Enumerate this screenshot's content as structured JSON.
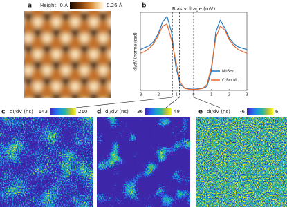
{
  "panels": {
    "a": {
      "label": "a",
      "colorbar": {
        "title": "Height",
        "min": "0 Å",
        "max": "0.26 Å"
      }
    },
    "b": {
      "label": "b",
      "chart_data": {
        "type": "line",
        "x_label": "Bias voltage (mV)",
        "y_label": "dI/dV (normalized)",
        "x": [
          -3,
          -2.75,
          -2.5,
          -2.25,
          -2,
          -1.75,
          -1.5,
          -1.25,
          -1,
          -0.75,
          -0.5,
          -0.25,
          0,
          0.25,
          0.5,
          0.75,
          1,
          1.25,
          1.5,
          1.75,
          2,
          2.25,
          2.5,
          2.75,
          3
        ],
        "series": [
          {
            "name": "NbSe₂",
            "color": "#1f77c4",
            "values": [
              1.05,
              1.1,
              1.15,
              1.25,
              1.45,
              1.75,
              1.9,
              1.5,
              0.6,
              0.15,
              0.06,
              0.04,
              0.03,
              0.04,
              0.05,
              0.1,
              0.5,
              1.5,
              1.8,
              1.6,
              1.35,
              1.2,
              1.12,
              1.08,
              1.05
            ]
          },
          {
            "name": "CrBr₃ ML",
            "color": "#e8692a",
            "values": [
              0.95,
              1.0,
              1.08,
              1.2,
              1.4,
              1.65,
              1.7,
              1.3,
              0.75,
              0.2,
              0.05,
              0.03,
              0.02,
              0.03,
              0.05,
              0.15,
              0.6,
              1.35,
              1.65,
              1.55,
              1.3,
              1.15,
              1.05,
              1.0,
              0.95
            ]
          }
        ],
        "xlim": [
          -3,
          3
        ],
        "xticks": [
          -3,
          -2,
          -1,
          0,
          1,
          2,
          3
        ],
        "ylim": [
          0,
          2
        ],
        "markers": [
          -1.2,
          -0.8,
          0
        ],
        "legend": "lower right"
      }
    },
    "c": {
      "label": "c",
      "colorbar": {
        "title": "dI/dV (ns)",
        "min": 143,
        "max": 210
      }
    },
    "d": {
      "label": "d",
      "colorbar": {
        "title": "dI/dV (ns)",
        "min": 36,
        "max": 49
      }
    },
    "e": {
      "label": "e",
      "colorbar": {
        "title": "dI/dV (ns)",
        "min": -6,
        "max": 6
      }
    }
  }
}
